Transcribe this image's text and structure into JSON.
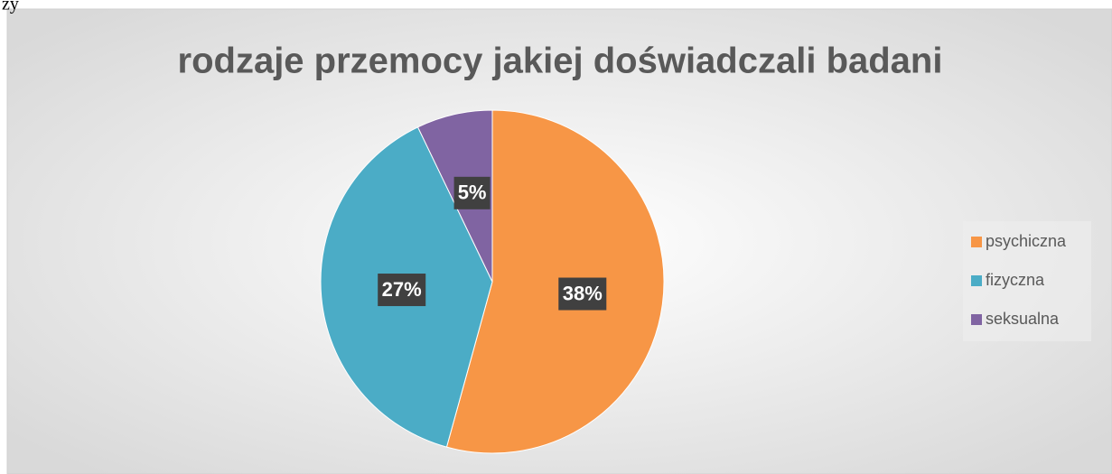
{
  "page_text": "ży",
  "chart_data": {
    "type": "pie",
    "title": "rodzaje przemocy jakiej doświadczali badani",
    "categories": [
      "psychiczna",
      "fizyczna",
      "seksualna"
    ],
    "values": [
      38,
      27,
      5
    ],
    "value_labels": [
      "38%",
      "27%",
      "5%"
    ],
    "colors": [
      "#f79646",
      "#4bacc6",
      "#8064a2"
    ],
    "legend": "right"
  }
}
